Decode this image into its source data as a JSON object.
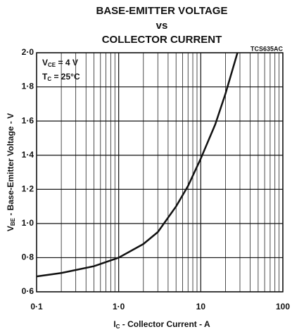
{
  "chart_data": {
    "type": "line",
    "title": [
      "BASE-EMITTER VOLTAGE",
      "vs",
      "COLLECTOR CURRENT"
    ],
    "code": "TCS635AC",
    "annotations": [
      {
        "symbol": "V",
        "subscript": "CE",
        "text": " = 4 V"
      },
      {
        "symbol": "T",
        "subscript": "C",
        "text": " = 25°C"
      }
    ],
    "xlabel": {
      "symbol": "I",
      "subscript": "C",
      "text": " - Collector Current - A"
    },
    "ylabel": {
      "symbol": "V",
      "subscript": "BE",
      "text": " - Base-Emitter Voltage - V"
    },
    "xscale": "log",
    "xlim": [
      0.1,
      100
    ],
    "ylim": [
      0.6,
      2.0
    ],
    "xticks": [
      {
        "value": 0.1,
        "label": "0·1"
      },
      {
        "value": 1,
        "label": "1·0"
      },
      10,
      100
    ],
    "minor_xticks": [
      0.2,
      0.3,
      0.4,
      0.5,
      0.6,
      0.7,
      0.8,
      0.9,
      2,
      3,
      4,
      5,
      6,
      7,
      8,
      9,
      20,
      30,
      40,
      50,
      60,
      70,
      80,
      90
    ],
    "yticks": [
      {
        "value": 0.6,
        "label": "0·6"
      },
      {
        "value": 0.8,
        "label": "0·8"
      },
      {
        "value": 1.0,
        "label": "1·0"
      },
      {
        "value": 1.2,
        "label": "1·2"
      },
      {
        "value": 1.4,
        "label": "1·4"
      },
      {
        "value": 1.6,
        "label": "1·6"
      },
      {
        "value": 1.8,
        "label": "1·8"
      },
      {
        "value": 2.0,
        "label": "2·0"
      }
    ],
    "grid": true,
    "series": [
      {
        "color": "#111111",
        "x": [
          0.1,
          0.2,
          0.5,
          1,
          2,
          3,
          5,
          7,
          10,
          15,
          20,
          28
        ],
        "values": [
          0.69,
          0.71,
          0.75,
          0.8,
          0.88,
          0.95,
          1.1,
          1.22,
          1.38,
          1.58,
          1.76,
          2.0
        ]
      }
    ]
  }
}
